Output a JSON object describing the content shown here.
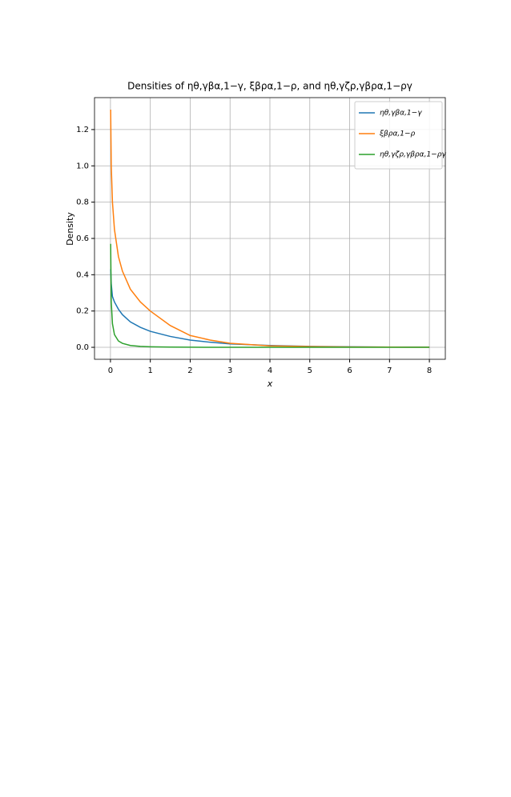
{
  "chart_data": {
    "type": "line",
    "title": "Densities of ηθ,γβα,1−γ, ξβρα,1−ρ, and ηθ,γζρ,γβρα,1−ργ",
    "xlabel": "x",
    "ylabel": "Density",
    "x": [
      0.005,
      0.02,
      0.05,
      0.1,
      0.2,
      0.3,
      0.5,
      0.75,
      1,
      1.5,
      2,
      2.5,
      3,
      4,
      5,
      6,
      7,
      8
    ],
    "series": [
      {
        "name": "ηθ,γβα,1−γ",
        "color": "#1f77b4",
        "values": [
          0.43,
          0.35,
          0.28,
          0.25,
          0.21,
          0.18,
          0.14,
          0.11,
          0.088,
          0.06,
          0.04,
          0.028,
          0.019,
          0.01,
          0.005,
          0.003,
          0.0015,
          0.001
        ]
      },
      {
        "name": "ξβρα,1−ρ",
        "color": "#ff7f0e",
        "values": [
          1.31,
          1.0,
          0.8,
          0.65,
          0.5,
          0.42,
          0.32,
          0.25,
          0.2,
          0.12,
          0.065,
          0.04,
          0.022,
          0.008,
          0.004,
          0.002,
          0.001,
          0.0005
        ]
      },
      {
        "name": "ηθ,γζρ,γβρα,1−ργ",
        "color": "#2ca02c",
        "values": [
          0.57,
          0.25,
          0.13,
          0.07,
          0.035,
          0.022,
          0.01,
          0.005,
          0.003,
          0.001,
          0.0005,
          0.0003,
          0.0002,
          0.0001,
          0,
          0,
          0,
          0
        ]
      }
    ],
    "xlim": [
      -0.4,
      8.4
    ],
    "ylim": [
      -0.066,
      1.376
    ],
    "xticks": [
      0,
      1,
      2,
      3,
      4,
      5,
      6,
      7,
      8
    ],
    "yticks": [
      {
        "value": 0,
        "label": "0.0"
      },
      0.2,
      0.4,
      0.6,
      0.8,
      {
        "value": 1,
        "label": "1.0"
      },
      1.2
    ],
    "grid": true,
    "legend": "upper right"
  }
}
